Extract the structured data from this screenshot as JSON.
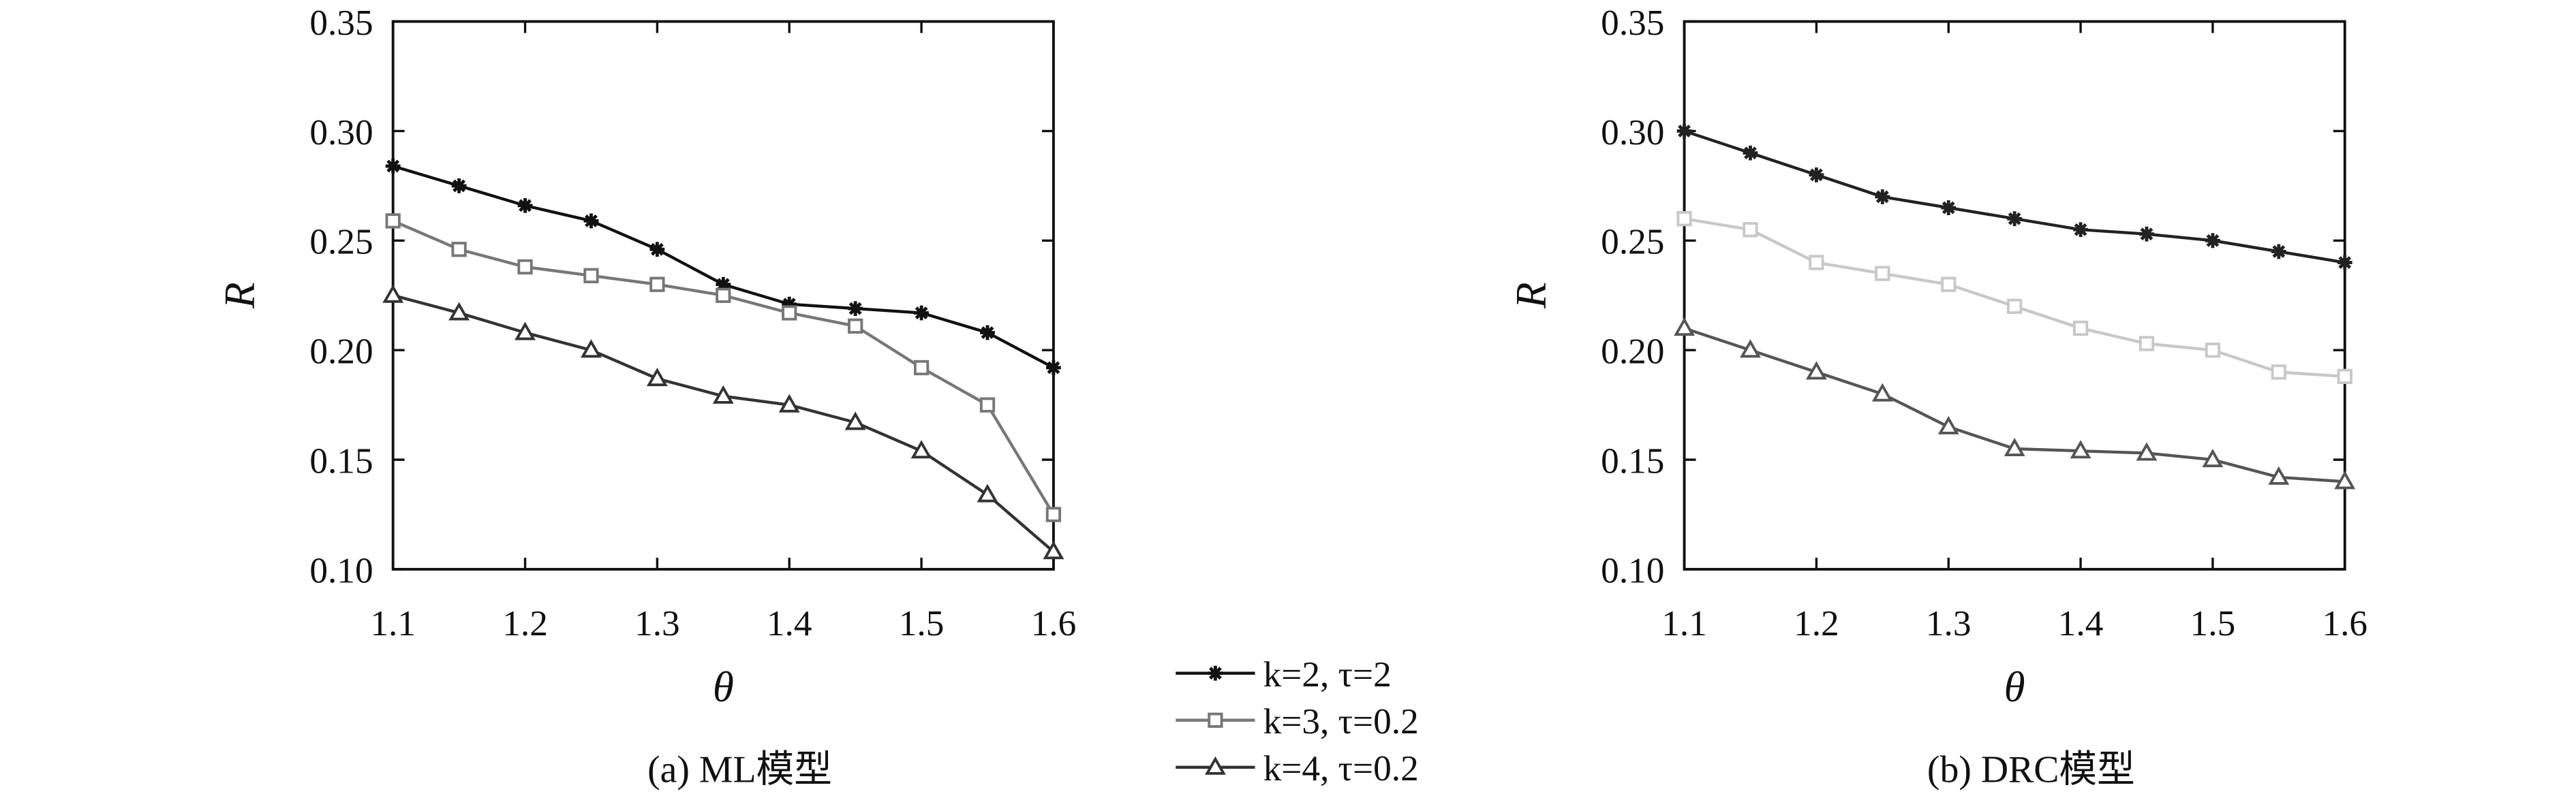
{
  "chart_data": [
    {
      "type": "line",
      "title": "(a) ML模型",
      "x_label": "θ",
      "y_label": "R",
      "x": [
        1.1,
        1.15,
        1.2,
        1.25,
        1.3,
        1.35,
        1.4,
        1.45,
        1.5,
        1.55,
        1.6
      ],
      "xlim": [
        1.1,
        1.6
      ],
      "xticks": [
        1.1,
        1.2,
        1.3,
        1.4,
        1.5,
        1.6
      ],
      "ylim": [
        0.1,
        0.35
      ],
      "yticks": [
        {
          "value": 0.1,
          "label": "0.10"
        },
        0.15,
        {
          "value": 0.2,
          "label": "0.20"
        },
        0.25,
        {
          "value": 0.3,
          "label": "0.30"
        },
        0.35
      ],
      "series": [
        {
          "name": "k=2, τ=2",
          "color": "#111111",
          "marker": "star",
          "values": [
            0.284,
            0.275,
            0.266,
            0.259,
            0.246,
            0.23,
            0.221,
            0.219,
            0.217,
            0.208,
            0.192
          ]
        },
        {
          "name": "k=3, τ=0.2",
          "color": "#777777",
          "marker": "square",
          "values": [
            0.259,
            0.246,
            0.238,
            0.234,
            0.23,
            0.225,
            0.217,
            0.211,
            0.192,
            0.175,
            0.125
          ]
        },
        {
          "name": "k=4, τ=0.2",
          "color": "#333333",
          "marker": "triangle",
          "values": [
            0.225,
            0.217,
            0.208,
            0.2,
            0.187,
            0.179,
            0.175,
            0.167,
            0.154,
            0.134,
            0.108
          ]
        }
      ]
    },
    {
      "type": "line",
      "title": "(b) DRC模型",
      "x_label": "θ",
      "y_label": "R",
      "x": [
        1.1,
        1.15,
        1.2,
        1.25,
        1.3,
        1.35,
        1.4,
        1.45,
        1.5,
        1.55,
        1.6
      ],
      "xlim": [
        1.1,
        1.6
      ],
      "xticks": [
        1.1,
        1.2,
        1.3,
        1.4,
        1.5,
        1.6
      ],
      "ylim": [
        0.1,
        0.35
      ],
      "yticks": [
        {
          "value": 0.1,
          "label": "0.10"
        },
        0.15,
        {
          "value": 0.2,
          "label": "0.20"
        },
        0.25,
        {
          "value": 0.3,
          "label": "0.30"
        },
        0.35
      ],
      "series": [
        {
          "color": "#222222",
          "marker": "star",
          "values": [
            0.3,
            0.29,
            0.28,
            0.27,
            0.265,
            0.26,
            0.255,
            0.253,
            0.25,
            0.245,
            0.24
          ]
        },
        {
          "color": "#c8c8c8",
          "marker": "square",
          "values": [
            0.26,
            0.255,
            0.24,
            0.235,
            0.23,
            0.22,
            0.21,
            0.203,
            0.2,
            0.19,
            0.188
          ]
        },
        {
          "color": "#555555",
          "marker": "triangle",
          "values": [
            0.21,
            0.2,
            0.19,
            0.18,
            0.165,
            0.155,
            0.154,
            0.153,
            0.15,
            0.142,
            0.14
          ]
        }
      ]
    }
  ]
}
